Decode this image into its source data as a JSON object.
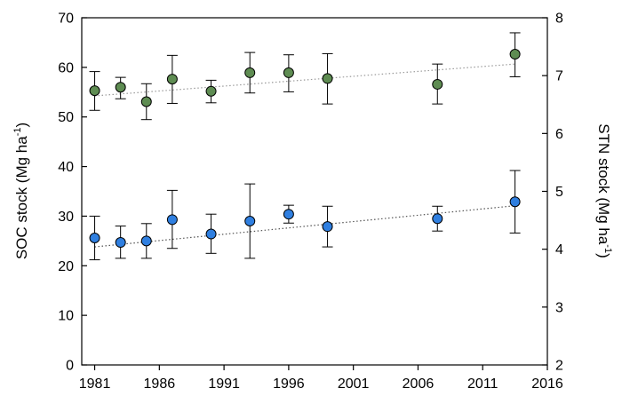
{
  "chart_data": {
    "type": "scatter",
    "x_axis": {
      "range": [
        1980,
        2016
      ],
      "ticks": [
        1981,
        1986,
        1991,
        1996,
        2001,
        2006,
        2011,
        2016
      ],
      "tick_labels": [
        "1981",
        "1986",
        "1991",
        "1996",
        "2001",
        "2006",
        "2011",
        "2016"
      ]
    },
    "y_left": {
      "label": "SOC stock (Mg ha",
      "label_sup": "-1",
      "label_end": ")",
      "range": [
        0,
        70
      ],
      "ticks": [
        0,
        10,
        20,
        30,
        40,
        50,
        60,
        70
      ],
      "tick_labels": [
        "0",
        "10",
        "20",
        "30",
        "40",
        "50",
        "60",
        "70"
      ]
    },
    "y_right": {
      "label": "STN stock (Mg ha",
      "label_sup": "-1",
      "label_end": ")",
      "range": [
        2,
        8
      ],
      "ticks": [
        2,
        3,
        4,
        5,
        6,
        7,
        8
      ],
      "tick_labels": [
        "2",
        "3",
        "4",
        "5",
        "6",
        "7",
        "8"
      ]
    },
    "grid": false,
    "series": [
      {
        "axis": "left",
        "color": "#2f7fe0",
        "points": [
          {
            "x": 1981,
            "y": 25.6,
            "lo": 21.2,
            "hi": 30.0
          },
          {
            "x": 1983,
            "y": 24.7,
            "lo": 21.5,
            "hi": 28.0
          },
          {
            "x": 1985,
            "y": 25.0,
            "lo": 21.5,
            "hi": 28.5
          },
          {
            "x": 1987,
            "y": 29.3,
            "lo": 23.5,
            "hi": 35.2
          },
          {
            "x": 1990,
            "y": 26.4,
            "lo": 22.5,
            "hi": 30.4
          },
          {
            "x": 1993,
            "y": 29.0,
            "lo": 21.5,
            "hi": 36.5
          },
          {
            "x": 1996,
            "y": 30.4,
            "lo": 28.6,
            "hi": 32.2
          },
          {
            "x": 1999,
            "y": 27.9,
            "lo": 23.8,
            "hi": 32.0
          },
          {
            "x": 2007.5,
            "y": 29.5,
            "lo": 27.0,
            "hi": 32.0
          },
          {
            "x": 2013.5,
            "y": 32.9,
            "lo": 26.6,
            "hi": 39.2
          }
        ],
        "trend": [
          [
            1981,
            23.8
          ],
          [
            2013.5,
            32.1
          ]
        ]
      },
      {
        "axis": "right",
        "color": "#5e8c52",
        "points": [
          {
            "x": 1981,
            "y": 6.74,
            "lo": 6.4,
            "hi": 7.07
          },
          {
            "x": 1983,
            "y": 6.8,
            "lo": 6.6,
            "hi": 6.97
          },
          {
            "x": 1985,
            "y": 6.55,
            "lo": 6.24,
            "hi": 6.86
          },
          {
            "x": 1987,
            "y": 6.94,
            "lo": 6.52,
            "hi": 7.35
          },
          {
            "x": 1990,
            "y": 6.73,
            "lo": 6.53,
            "hi": 6.92
          },
          {
            "x": 1993,
            "y": 7.05,
            "lo": 6.7,
            "hi": 7.4
          },
          {
            "x": 1996,
            "y": 7.05,
            "lo": 6.72,
            "hi": 7.36
          },
          {
            "x": 1999,
            "y": 6.95,
            "lo": 6.51,
            "hi": 7.38
          },
          {
            "x": 2007.5,
            "y": 6.85,
            "lo": 6.51,
            "hi": 7.2
          },
          {
            "x": 2013.5,
            "y": 7.37,
            "lo": 6.98,
            "hi": 7.74
          }
        ],
        "trend": [
          [
            1981,
            6.65
          ],
          [
            2013.5,
            7.2
          ]
        ]
      }
    ]
  }
}
